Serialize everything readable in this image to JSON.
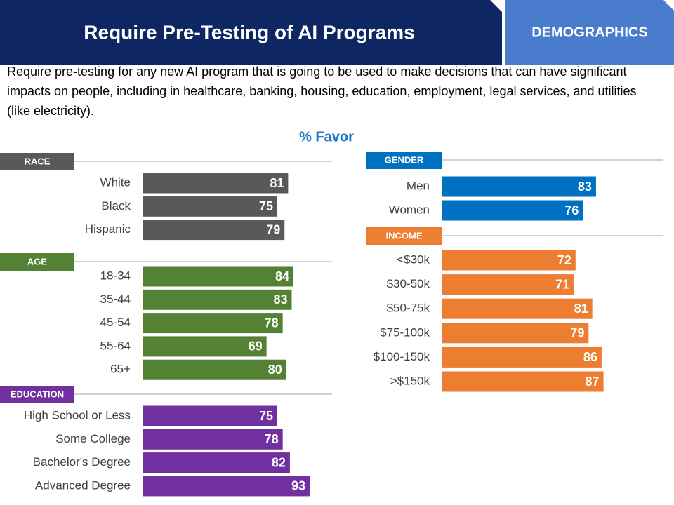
{
  "header": {
    "title": "Require Pre-Testing of AI Programs",
    "tab": "DEMOGRAPHICS",
    "description": "Require pre-testing for any new AI program that is going to be used to make decisions that can have significant impacts on people, including in healthcare, banking, housing, education, employment, legal services, and utilities (like electricity).",
    "subtitle": "% Favor"
  },
  "chart_data": [
    {
      "type": "bar",
      "title": "RACE",
      "categories": [
        "White",
        "Black",
        "Hispanic"
      ],
      "values": [
        81,
        75,
        79
      ],
      "color": "#595959",
      "xlim": [
        0,
        100
      ]
    },
    {
      "type": "bar",
      "title": "AGE",
      "categories": [
        "18-34",
        "35-44",
        "45-54",
        "55-64",
        "65+"
      ],
      "values": [
        84,
        83,
        78,
        69,
        80
      ],
      "color": "#548235",
      "xlim": [
        0,
        100
      ]
    },
    {
      "type": "bar",
      "title": "EDUCATION",
      "categories": [
        "High School or Less",
        "Some College",
        "Bachelor's Degree",
        "Advanced Degree"
      ],
      "values": [
        75,
        78,
        82,
        93
      ],
      "color": "#7030a0",
      "xlim": [
        0,
        100
      ]
    },
    {
      "type": "bar",
      "title": "GENDER",
      "categories": [
        "Men",
        "Women"
      ],
      "values": [
        83,
        76
      ],
      "color": "#0070c0",
      "xlim": [
        0,
        100
      ]
    },
    {
      "type": "bar",
      "title": "INCOME",
      "categories": [
        "<$30k",
        "$30-50k",
        "$50-75k",
        "$75-100k",
        "$100-150k",
        ">$150k"
      ],
      "values": [
        72,
        71,
        81,
        79,
        86,
        87
      ],
      "color": "#ed7d31",
      "xlim": [
        0,
        100
      ]
    }
  ]
}
